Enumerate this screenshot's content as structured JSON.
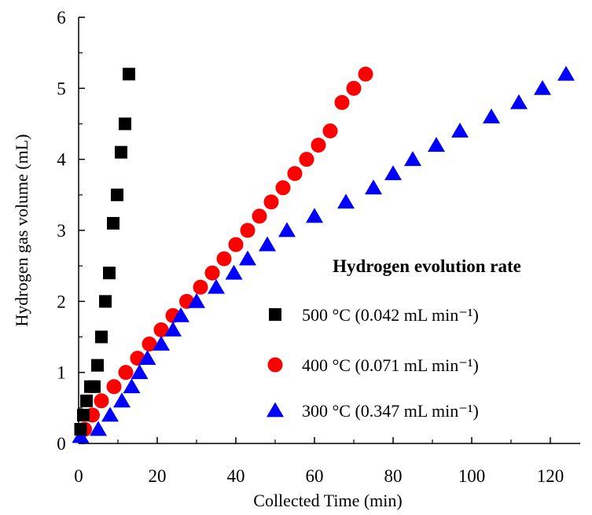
{
  "chart_data": {
    "type": "scatter",
    "xlabel": "Collected Time (min)",
    "ylabel": "Hydrogen gas volume (mL)",
    "xlim": [
      0,
      125
    ],
    "ylim": [
      0,
      6
    ],
    "xticks": [
      "0",
      "20",
      "40",
      "60",
      "80",
      "100",
      "120"
    ],
    "yticks": [
      "0",
      "1",
      "2",
      "3",
      "4",
      "5",
      "6"
    ],
    "grid": false,
    "legend": {
      "title": "Hydrogen evolution rate",
      "placement": "bottom-right"
    },
    "series": [
      {
        "name": "500 °C (0.042 mL min⁻¹)",
        "marker": "square",
        "color": "#000000",
        "x": [
          0.5,
          1.2,
          2.0,
          3.0,
          4.0,
          4.8,
          5.8,
          6.8,
          7.8,
          8.8,
          9.8,
          10.8,
          11.8,
          12.8
        ],
        "y": [
          0.2,
          0.4,
          0.6,
          0.8,
          0.8,
          1.1,
          1.5,
          2.0,
          2.4,
          3.1,
          3.5,
          4.1,
          4.5,
          5.2
        ]
      },
      {
        "name": "400 °C (0.071 mL min⁻¹)",
        "marker": "circle",
        "color": "#ff0000",
        "x": [
          1.5,
          3.5,
          5.8,
          9.0,
          12.0,
          15.0,
          18.0,
          21.0,
          24.0,
          27.5,
          31.0,
          34.0,
          37.0,
          40.0,
          43.0,
          46.0,
          49.0,
          52.0,
          55.0,
          58.0,
          61.0,
          64.0,
          67.0,
          70.0,
          73.0
        ],
        "y": [
          0.2,
          0.4,
          0.6,
          0.8,
          1.0,
          1.2,
          1.4,
          1.6,
          1.8,
          2.0,
          2.2,
          2.4,
          2.6,
          2.8,
          3.0,
          3.2,
          3.4,
          3.6,
          3.8,
          4.0,
          4.2,
          4.4,
          4.8,
          5.0,
          5.2
        ]
      },
      {
        "name": "300 °C (0.347 mL min⁻¹)",
        "marker": "triangle",
        "color": "#0000ff",
        "x": [
          0.5,
          5.0,
          8.0,
          11.0,
          13.5,
          15.5,
          17.5,
          21.0,
          24.0,
          26.0,
          30.0,
          35.0,
          39.5,
          43.0,
          48.0,
          53.0,
          60.0,
          68.0,
          75.0,
          80.0,
          85.0,
          91.0,
          97.0,
          105.0,
          112.0,
          118.0,
          124.0
        ],
        "y": [
          0.1,
          0.2,
          0.4,
          0.6,
          0.8,
          1.0,
          1.2,
          1.4,
          1.6,
          1.8,
          2.0,
          2.2,
          2.4,
          2.6,
          2.8,
          3.0,
          3.2,
          3.4,
          3.6,
          3.8,
          4.0,
          4.2,
          4.4,
          4.6,
          4.8,
          5.0,
          5.2
        ]
      }
    ]
  }
}
